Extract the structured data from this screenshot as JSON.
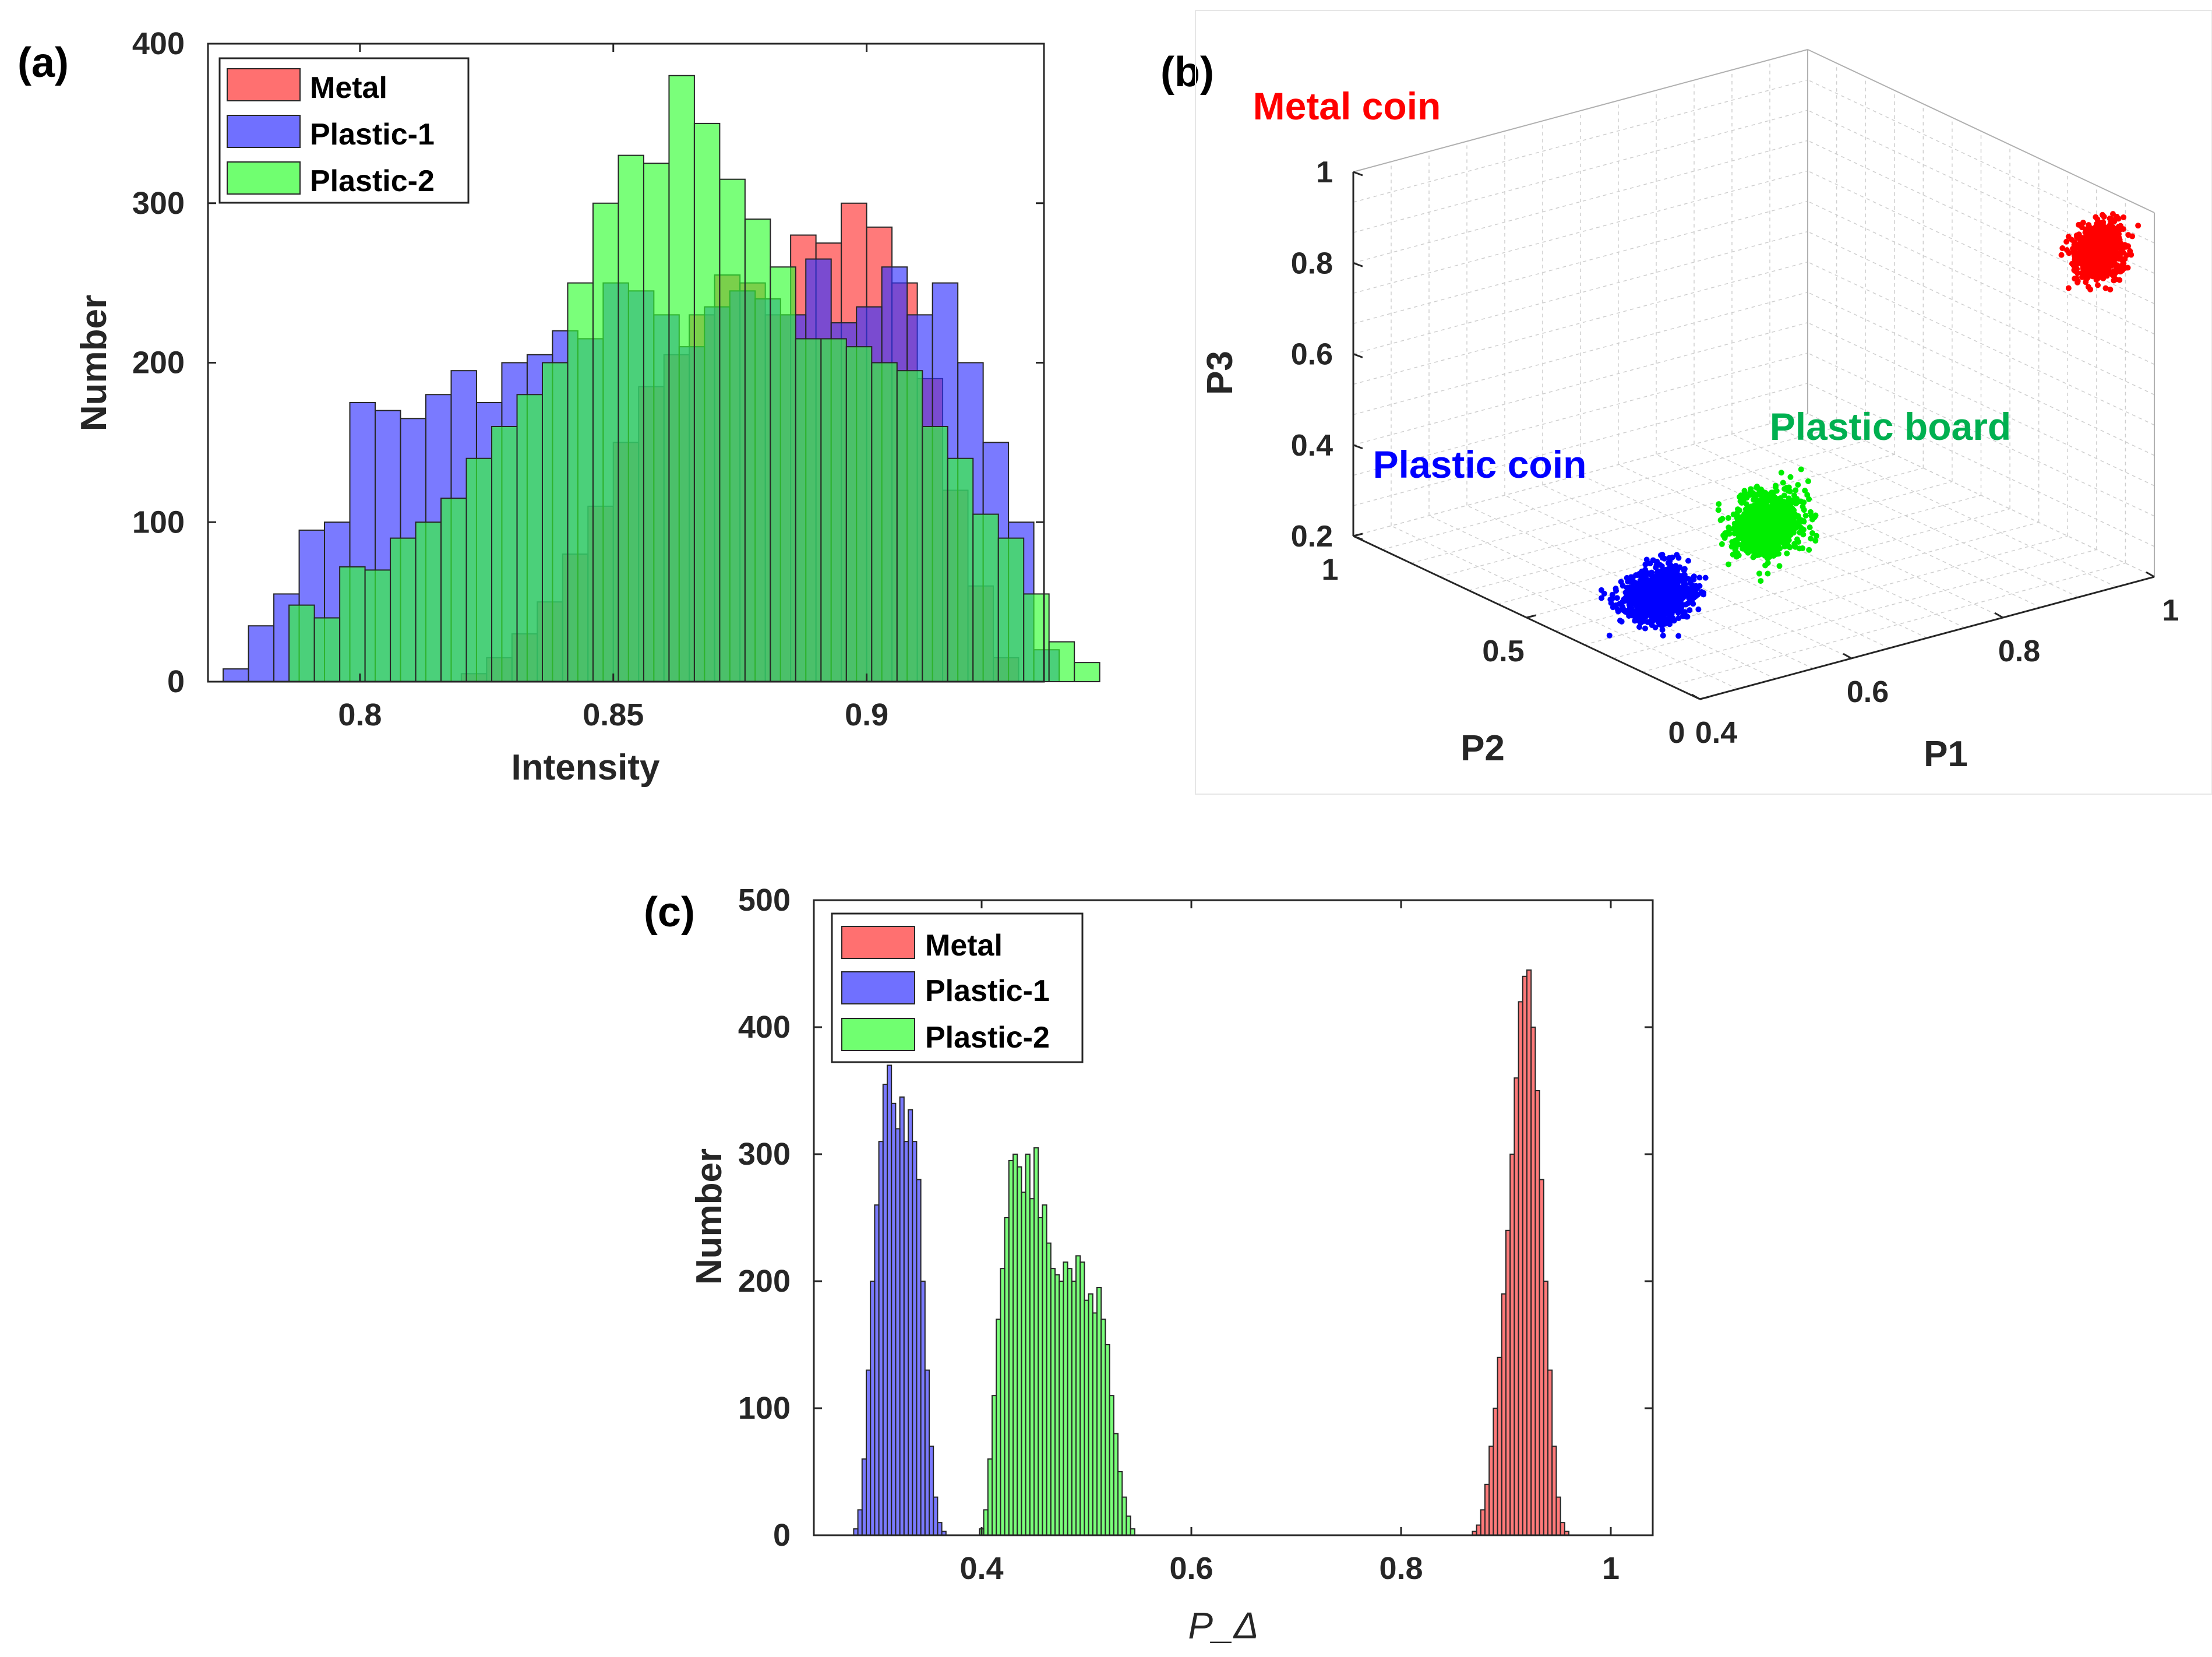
{
  "panels": {
    "a": {
      "label": "(a)"
    },
    "b": {
      "label": "(b)"
    },
    "c": {
      "label": "(c)"
    }
  },
  "chart_data": [
    {
      "panel": "a",
      "type": "bar",
      "subtype": "overlaid-histogram",
      "title": "",
      "xlabel": "Intensity",
      "ylabel": "Number",
      "xlim": [
        0.77,
        0.935
      ],
      "ylim": [
        0,
        400
      ],
      "xticks": [
        0.8,
        0.85,
        0.9
      ],
      "xtick_labels": [
        "0.8",
        "0.85",
        "0.9"
      ],
      "yticks": [
        0,
        100,
        200,
        300,
        400
      ],
      "ytick_labels": [
        "0",
        "100",
        "200",
        "300",
        "400"
      ],
      "legend_position": "top-left",
      "series": [
        {
          "name": "Metal",
          "color": "#ff3333",
          "bin_start": 0.82,
          "bin_width": 0.005,
          "values": [
            5,
            15,
            30,
            50,
            80,
            110,
            150,
            185,
            205,
            230,
            255,
            250,
            230,
            280,
            275,
            300,
            285,
            250,
            190,
            120,
            60,
            15
          ]
        },
        {
          "name": "Plastic-1",
          "color": "#3333ff",
          "bin_start": 0.773,
          "bin_width": 0.005,
          "values": [
            8,
            35,
            55,
            95,
            100,
            175,
            170,
            165,
            180,
            195,
            175,
            200,
            205,
            220,
            215,
            250,
            245,
            230,
            210,
            235,
            245,
            240,
            230,
            265,
            225,
            235,
            260,
            230,
            250,
            200,
            150,
            100,
            20
          ]
        },
        {
          "name": "Plastic-2",
          "color": "#33ff33",
          "bin_start": 0.786,
          "bin_width": 0.005,
          "values": [
            48,
            40,
            72,
            70,
            90,
            100,
            115,
            140,
            160,
            180,
            200,
            250,
            300,
            330,
            325,
            380,
            350,
            315,
            290,
            260,
            215,
            215,
            210,
            200,
            195,
            160,
            140,
            105,
            90,
            55,
            25,
            12
          ]
        }
      ]
    },
    {
      "panel": "b",
      "type": "scatter",
      "subtype": "3d-scatter",
      "title": "",
      "xlabel": "P1",
      "ylabel": "P2",
      "zlabel": "P3",
      "xlim": [
        0.4,
        1
      ],
      "ylim": [
        0,
        1
      ],
      "zlim": [
        0.2,
        1
      ],
      "xtick_labels": [
        "0.4",
        "0.6",
        "0.8",
        "1"
      ],
      "ytick_labels": [
        "0",
        "0.5",
        "1"
      ],
      "ztick_labels": [
        "0.2",
        "0.4",
        "0.6",
        "0.8",
        "1"
      ],
      "grid": true,
      "series": [
        {
          "name": "Metal coin",
          "color": "#ff0000",
          "center": [
            0.95,
            0.05,
            0.92
          ],
          "spread": [
            0.02,
            0.02,
            0.04
          ]
        },
        {
          "name": "Plastic board",
          "color": "#00ee00",
          "center": [
            0.65,
            0.35,
            0.35
          ],
          "spread": [
            0.03,
            0.03,
            0.05
          ]
        },
        {
          "name": "Plastic coin",
          "color": "#0000ff",
          "center": [
            0.55,
            0.45,
            0.2
          ],
          "spread": [
            0.03,
            0.03,
            0.04
          ]
        }
      ],
      "annotations": [
        {
          "text": "Metal coin",
          "color": "#ff0000"
        },
        {
          "text": "Plastic board",
          "color": "#00b050"
        },
        {
          "text": "Plastic coin",
          "color": "#0000ff"
        }
      ]
    },
    {
      "panel": "c",
      "type": "bar",
      "subtype": "overlaid-histogram",
      "title": "",
      "xlabel": "P_Δ",
      "ylabel": "Number",
      "xlim": [
        0.24,
        1.04
      ],
      "ylim": [
        0,
        500
      ],
      "xticks": [
        0.4,
        0.6,
        0.8,
        1
      ],
      "xtick_labels": [
        "0.4",
        "0.6",
        "0.8",
        "1"
      ],
      "yticks": [
        0,
        100,
        200,
        300,
        400,
        500
      ],
      "ytick_labels": [
        "0",
        "100",
        "200",
        "300",
        "400",
        "500"
      ],
      "legend_position": "top-left",
      "series": [
        {
          "name": "Metal",
          "color": "#ff3333",
          "bin_start": 0.868,
          "bin_width": 0.004,
          "values": [
            3,
            8,
            20,
            40,
            70,
            100,
            140,
            190,
            240,
            300,
            360,
            420,
            440,
            445,
            400,
            350,
            280,
            200,
            130,
            70,
            30,
            10,
            3
          ]
        },
        {
          "name": "Plastic-1",
          "color": "#3333ff",
          "bin_start": 0.278,
          "bin_width": 0.004,
          "values": [
            5,
            20,
            60,
            130,
            200,
            260,
            310,
            355,
            370,
            340,
            320,
            345,
            310,
            335,
            310,
            280,
            200,
            130,
            70,
            30,
            10,
            3
          ]
        },
        {
          "name": "Plastic-2",
          "color": "#33ff33",
          "bin_start": 0.398,
          "bin_width": 0.004,
          "values": [
            5,
            20,
            60,
            110,
            170,
            210,
            250,
            295,
            300,
            290,
            270,
            300,
            265,
            305,
            250,
            260,
            230,
            210,
            205,
            200,
            215,
            210,
            200,
            220,
            215,
            185,
            190,
            175,
            195,
            170,
            150,
            110,
            80,
            50,
            30,
            15,
            5
          ]
        }
      ]
    }
  ]
}
